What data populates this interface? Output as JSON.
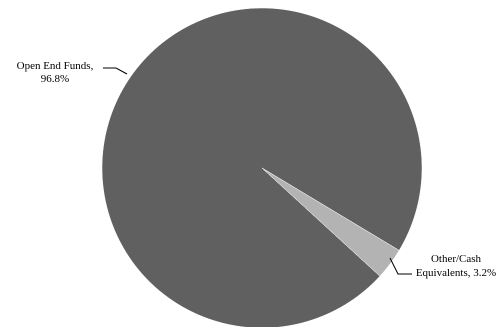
{
  "chart_data": {
    "type": "pie",
    "title": "",
    "slices": [
      {
        "label_line1": "Open End Funds,",
        "label_line2": "96.8%",
        "value": 96.8,
        "color": "#606060"
      },
      {
        "label_line1": "Other/Cash",
        "label_line2": "Equivalents, 3.2%",
        "value": 3.2,
        "color": "#b3b3b3"
      }
    ],
    "legend": "none"
  }
}
